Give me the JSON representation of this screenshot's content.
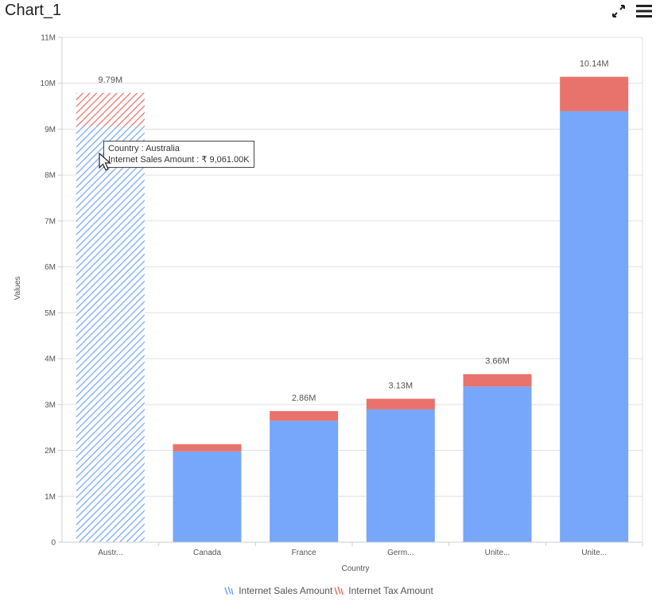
{
  "header": {
    "title": "Chart_1"
  },
  "toolbar": {
    "icons": [
      "expand-icon",
      "menu-icon"
    ]
  },
  "tooltip": {
    "line1": "Country : Australia",
    "line2": "Internet Sales Amount : ₹ 9,061.00K"
  },
  "colors": {
    "sales": "#76a7fa",
    "tax": "#e8736c",
    "grid": "#e0e0e0",
    "axis": "#cfcfcf",
    "label": "#555555"
  },
  "chart_data": {
    "type": "bar",
    "stacked": true,
    "xlabel": "Country",
    "ylabel": "Values",
    "ylim": [
      0,
      11000000
    ],
    "yticks": [
      "0",
      "1M",
      "2M",
      "3M",
      "4M",
      "5M",
      "6M",
      "7M",
      "8M",
      "9M",
      "10M",
      "11M"
    ],
    "categories": [
      "Austr...",
      "Canada",
      "France",
      "Germ...",
      "Unite...",
      "Unite..."
    ],
    "series": [
      {
        "name": "Internet Sales Amount",
        "values": [
          9061000,
          1978000,
          2645000,
          2894000,
          3391000,
          9390000
        ]
      },
      {
        "name": "Internet Tax Amount",
        "values": [
          729000,
          158000,
          212000,
          232000,
          271000,
          751000
        ]
      }
    ],
    "totals_labels": [
      "9.79M",
      "",
      "2.86M",
      "3.13M",
      "3.66M",
      "10.14M"
    ],
    "highlighted_index": 0,
    "legend_position": "bottom",
    "grid": true
  }
}
